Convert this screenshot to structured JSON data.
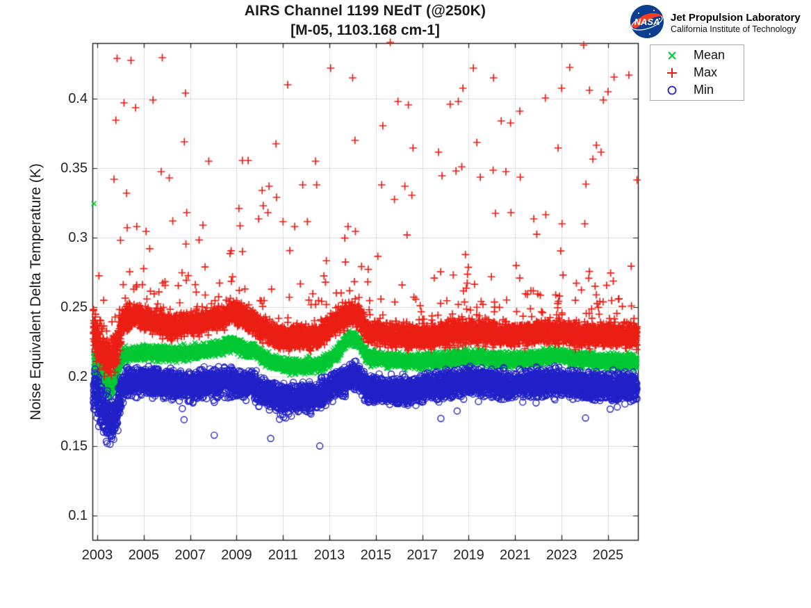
{
  "header": {
    "title_line1": "AIRS Channel 1199 NEdT (@250K)",
    "title_line2": "[M-05, 1103.168 cm-1]",
    "jpl": {
      "line1": "Jet Propulsion Laboratory",
      "line2": "California Institute of Technology",
      "nasa_text": "NASA",
      "meatball_blue": "#0b3d91",
      "swoosh_red": "#fc3d21"
    }
  },
  "chart_data": {
    "type": "scatter",
    "title": "AIRS Channel 1199 NEdT (@250K)",
    "subtitle": "[M-05, 1103.168 cm-1]",
    "xlabel": "",
    "ylabel": "Noise Equivalent Delta Temperature (K)",
    "xlim": [
      2002.79,
      2026.29
    ],
    "ylim": [
      0.0825,
      0.44
    ],
    "xticks": [
      2003,
      2005,
      2007,
      2009,
      2011,
      2013,
      2015,
      2017,
      2019,
      2021,
      2023,
      2025
    ],
    "xtick_labels": [
      "2003",
      "2005",
      "2007",
      "2009",
      "2011",
      "2013",
      "2015",
      "2017",
      "2019",
      "2021",
      "2023",
      "2025"
    ],
    "yticks": [
      0.1,
      0.15,
      0.2,
      0.25,
      0.3,
      0.35,
      0.4
    ],
    "ytick_labels": [
      "0.1",
      "0.15",
      "0.2",
      "0.25",
      "0.3",
      "0.35",
      "0.4"
    ],
    "grid": true,
    "grid_color": "#dcdcdc",
    "axis_color": "#1a1a1a",
    "legend": {
      "position": "outside-top-right",
      "items": [
        {
          "label": "Mean",
          "marker": "x",
          "color": "#00c832"
        },
        {
          "label": "Max",
          "marker": "+",
          "color": "#eb1e14"
        },
        {
          "label": "Min",
          "marker": "o",
          "color": "#2020c8"
        }
      ]
    },
    "sampling": {
      "points_per_series": 6200,
      "x_start": 2002.83,
      "x_end": 2026.25,
      "seed": 1199
    },
    "spread_boost": [
      [
        2002.83,
        2.3
      ],
      [
        2003.0,
        2.0
      ],
      [
        2003.5,
        1.7
      ],
      [
        2003.9,
        1.5
      ],
      [
        2004.1,
        1.0
      ],
      [
        2026.3,
        1.0
      ]
    ],
    "series": [
      {
        "name": "Mean",
        "marker": "x",
        "color": "#00c832",
        "jitter": 0.005,
        "control_points": [
          [
            2002.83,
            0.2105
          ],
          [
            2002.95,
            0.209
          ],
          [
            2003.1,
            0.205
          ],
          [
            2003.3,
            0.1975
          ],
          [
            2003.45,
            0.193
          ],
          [
            2003.6,
            0.1935
          ],
          [
            2003.8,
            0.1985
          ],
          [
            2003.95,
            0.209
          ],
          [
            2004.1,
            0.2155
          ],
          [
            2004.5,
            0.2165
          ],
          [
            2005,
            0.2175
          ],
          [
            2005.5,
            0.217
          ],
          [
            2006,
            0.2165
          ],
          [
            2006.5,
            0.216
          ],
          [
            2007,
            0.2175
          ],
          [
            2007.5,
            0.218
          ],
          [
            2008,
            0.2195
          ],
          [
            2008.4,
            0.2215
          ],
          [
            2008.8,
            0.2235
          ],
          [
            2009.2,
            0.2205
          ],
          [
            2009.5,
            0.2175
          ],
          [
            2009.7,
            0.2205
          ],
          [
            2010,
            0.2155
          ],
          [
            2010.5,
            0.211
          ],
          [
            2011,
            0.2085
          ],
          [
            2011.5,
            0.2075
          ],
          [
            2012,
            0.2075
          ],
          [
            2012.5,
            0.2085
          ],
          [
            2012.9,
            0.2105
          ],
          [
            2013.3,
            0.216
          ],
          [
            2013.7,
            0.2255
          ],
          [
            2014,
            0.228
          ],
          [
            2014.3,
            0.2245
          ],
          [
            2014.55,
            0.216
          ],
          [
            2014.8,
            0.2135
          ],
          [
            2015.3,
            0.2125
          ],
          [
            2016,
            0.2115
          ],
          [
            2017,
            0.211
          ],
          [
            2017.5,
            0.2115
          ],
          [
            2018,
            0.2125
          ],
          [
            2018.8,
            0.2145
          ],
          [
            2019.5,
            0.2135
          ],
          [
            2020,
            0.2125
          ],
          [
            2020.7,
            0.212
          ],
          [
            2021.3,
            0.2125
          ],
          [
            2022,
            0.2135
          ],
          [
            2022.8,
            0.2155
          ],
          [
            2023.3,
            0.214
          ],
          [
            2023.8,
            0.2125
          ],
          [
            2024.5,
            0.2115
          ],
          [
            2025.2,
            0.2115
          ],
          [
            2026.25,
            0.211
          ]
        ],
        "outliers": [
          [
            2002.85,
            0.3245
          ]
        ]
      },
      {
        "name": "Max",
        "marker": "+",
        "color": "#eb1e14",
        "jitter": 0.008,
        "outlier_rate": 0.042,
        "outlier_scale": 0.015,
        "outlier_offset": 0.007,
        "outlier_cap": 0.325,
        "control_points": [
          [
            2002.83,
            0.2335
          ],
          [
            2003.0,
            0.2265
          ],
          [
            2003.15,
            0.222
          ],
          [
            2003.35,
            0.2155
          ],
          [
            2003.6,
            0.2135
          ],
          [
            2003.85,
            0.2185
          ],
          [
            2004.05,
            0.238
          ],
          [
            2004.4,
            0.2425
          ],
          [
            2004.8,
            0.2435
          ],
          [
            2005.2,
            0.2405
          ],
          [
            2005.7,
            0.2375
          ],
          [
            2006.2,
            0.2365
          ],
          [
            2006.8,
            0.2375
          ],
          [
            2007.3,
            0.2385
          ],
          [
            2007.8,
            0.2405
          ],
          [
            2008.3,
            0.2425
          ],
          [
            2008.8,
            0.2465
          ],
          [
            2009.2,
            0.2435
          ],
          [
            2009.6,
            0.2415
          ],
          [
            2010,
            0.2345
          ],
          [
            2010.5,
            0.2305
          ],
          [
            2011,
            0.2285
          ],
          [
            2011.6,
            0.2275
          ],
          [
            2012.2,
            0.2285
          ],
          [
            2012.7,
            0.231
          ],
          [
            2013.1,
            0.2365
          ],
          [
            2013.6,
            0.2425
          ],
          [
            2014,
            0.2455
          ],
          [
            2014.3,
            0.2425
          ],
          [
            2014.6,
            0.2335
          ],
          [
            2015,
            0.2315
          ],
          [
            2015.5,
            0.2305
          ],
          [
            2016,
            0.2295
          ],
          [
            2017,
            0.2285
          ],
          [
            2018,
            0.2305
          ],
          [
            2018.8,
            0.2325
          ],
          [
            2019.5,
            0.2315
          ],
          [
            2020,
            0.2305
          ],
          [
            2021,
            0.2305
          ],
          [
            2021.8,
            0.231
          ],
          [
            2022.5,
            0.2325
          ],
          [
            2023,
            0.2315
          ],
          [
            2023.5,
            0.2305
          ],
          [
            2024,
            0.2295
          ],
          [
            2025,
            0.2295
          ],
          [
            2026.25,
            0.2295
          ]
        ],
        "outliers": [
          [
            2003.72,
            0.342
          ],
          [
            2003.8,
            0.3845
          ],
          [
            2003.85,
            0.429
          ],
          [
            2004.15,
            0.397
          ],
          [
            2004.26,
            0.332
          ],
          [
            2004.45,
            0.4275
          ],
          [
            2004.65,
            0.3935
          ],
          [
            2004.7,
            0.308
          ],
          [
            2005.1,
            0.3045
          ],
          [
            2005.4,
            0.399
          ],
          [
            2005.75,
            0.3475
          ],
          [
            2005.8,
            0.4295
          ],
          [
            2006.1,
            0.343
          ],
          [
            2006.25,
            0.312
          ],
          [
            2006.75,
            0.369
          ],
          [
            2006.8,
            0.404
          ],
          [
            2006.85,
            0.318
          ],
          [
            2007.55,
            0.309
          ],
          [
            2007.8,
            0.355
          ],
          [
            2009.1,
            0.321
          ],
          [
            2009.15,
            0.3085
          ],
          [
            2009.25,
            0.3555
          ],
          [
            2009.5,
            0.3555
          ],
          [
            2009.95,
            0.3135
          ],
          [
            2010.1,
            0.334
          ],
          [
            2010.15,
            0.323
          ],
          [
            2010.35,
            0.318
          ],
          [
            2010.4,
            0.337
          ],
          [
            2010.7,
            0.3675
          ],
          [
            2010.72,
            0.329
          ],
          [
            2011.0,
            0.3115
          ],
          [
            2011.2,
            0.41
          ],
          [
            2011.5,
            0.308
          ],
          [
            2011.85,
            0.338
          ],
          [
            2012.05,
            0.3115
          ],
          [
            2012.4,
            0.355
          ],
          [
            2012.45,
            0.338
          ],
          [
            2013.05,
            0.422
          ],
          [
            2013.8,
            0.308
          ],
          [
            2014.0,
            0.415
          ],
          [
            2014.1,
            0.37
          ],
          [
            2014.12,
            0.3045
          ],
          [
            2015.25,
            0.338
          ],
          [
            2015.3,
            0.3805
          ],
          [
            2015.62,
            0.4405
          ],
          [
            2015.8,
            0.3275
          ],
          [
            2015.95,
            0.398
          ],
          [
            2016.25,
            0.337
          ],
          [
            2016.4,
            0.3955
          ],
          [
            2016.55,
            0.3305
          ],
          [
            2016.6,
            0.3645
          ],
          [
            2017.7,
            0.3615
          ],
          [
            2017.85,
            0.3445
          ],
          [
            2018.2,
            0.396
          ],
          [
            2018.45,
            0.348
          ],
          [
            2018.55,
            0.398
          ],
          [
            2018.7,
            0.351
          ],
          [
            2018.75,
            0.4075
          ],
          [
            2019.2,
            0.422
          ],
          [
            2019.35,
            0.3685
          ],
          [
            2019.5,
            0.3435
          ],
          [
            2020.05,
            0.3485
          ],
          [
            2020.07,
            0.415
          ],
          [
            2020.15,
            0.3175
          ],
          [
            2020.4,
            0.384
          ],
          [
            2020.6,
            0.3475
          ],
          [
            2020.8,
            0.3825
          ],
          [
            2020.82,
            0.318
          ],
          [
            2021.2,
            0.391
          ],
          [
            2021.22,
            0.3435
          ],
          [
            2021.8,
            0.3135
          ],
          [
            2022.3,
            0.4005
          ],
          [
            2022.32,
            0.3165
          ],
          [
            2022.85,
            0.3645
          ],
          [
            2023.0,
            0.4075
          ],
          [
            2023.02,
            0.31
          ],
          [
            2023.35,
            0.4225
          ],
          [
            2023.95,
            0.4385
          ],
          [
            2024.0,
            0.31
          ],
          [
            2024.05,
            0.3385
          ],
          [
            2024.2,
            0.406
          ],
          [
            2024.35,
            0.3565
          ],
          [
            2024.5,
            0.3665
          ],
          [
            2024.7,
            0.3615
          ],
          [
            2024.8,
            0.399
          ],
          [
            2025.0,
            0.405
          ],
          [
            2025.26,
            0.4155
          ],
          [
            2025.9,
            0.417
          ],
          [
            2026.25,
            0.3415
          ]
        ]
      },
      {
        "name": "Min",
        "marker": "o",
        "color": "#2020c8",
        "jitter": 0.009,
        "low_tail_rate": 0.013,
        "low_tail_scale": 0.0055,
        "low_tail_offset": 0.003,
        "control_points": [
          [
            2002.83,
            0.1905
          ],
          [
            2003.0,
            0.1855
          ],
          [
            2003.15,
            0.178
          ],
          [
            2003.35,
            0.1715
          ],
          [
            2003.6,
            0.1695
          ],
          [
            2003.85,
            0.174
          ],
          [
            2004.05,
            0.1925
          ],
          [
            2004.5,
            0.196
          ],
          [
            2005,
            0.1975
          ],
          [
            2005.5,
            0.1965
          ],
          [
            2006,
            0.1945
          ],
          [
            2006.5,
            0.1935
          ],
          [
            2007,
            0.1935
          ],
          [
            2007.5,
            0.194
          ],
          [
            2008,
            0.1955
          ],
          [
            2008.6,
            0.1975
          ],
          [
            2009.2,
            0.1935
          ],
          [
            2009.6,
            0.196
          ],
          [
            2010,
            0.1895
          ],
          [
            2010.5,
            0.1865
          ],
          [
            2011,
            0.1845
          ],
          [
            2011.5,
            0.1845
          ],
          [
            2012,
            0.185
          ],
          [
            2012.5,
            0.1865
          ],
          [
            2013,
            0.1915
          ],
          [
            2013.5,
            0.197
          ],
          [
            2013.9,
            0.2
          ],
          [
            2014.2,
            0.2015
          ],
          [
            2014.5,
            0.1935
          ],
          [
            2014.8,
            0.1905
          ],
          [
            2015.3,
            0.1895
          ],
          [
            2016,
            0.1895
          ],
          [
            2016.5,
            0.19
          ],
          [
            2017,
            0.1915
          ],
          [
            2017.5,
            0.1925
          ],
          [
            2018,
            0.194
          ],
          [
            2018.6,
            0.196
          ],
          [
            2019.2,
            0.1965
          ],
          [
            2019.8,
            0.196
          ],
          [
            2020.3,
            0.195
          ],
          [
            2021,
            0.194
          ],
          [
            2021.7,
            0.1945
          ],
          [
            2022.3,
            0.1955
          ],
          [
            2022.8,
            0.196
          ],
          [
            2023.3,
            0.1945
          ],
          [
            2023.8,
            0.1935
          ],
          [
            2024.3,
            0.193
          ],
          [
            2025,
            0.1935
          ],
          [
            2025.7,
            0.1935
          ],
          [
            2026.25,
            0.193
          ]
        ],
        "outliers": []
      }
    ]
  }
}
